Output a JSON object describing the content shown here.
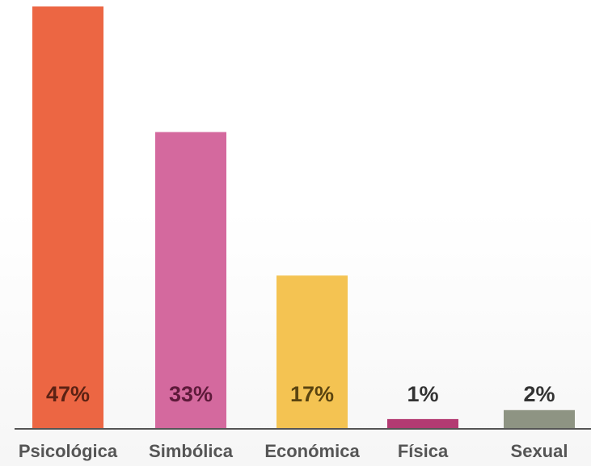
{
  "chart_data": {
    "type": "bar",
    "categories": [
      "Psicológica",
      "Simbólica",
      "Económica",
      "Física",
      "Sexual"
    ],
    "values": [
      47,
      33,
      17,
      1,
      2
    ],
    "value_labels": [
      "47%",
      "33%",
      "17%",
      "1%",
      "2%"
    ],
    "colors": [
      "#ec6643",
      "#d4699e",
      "#f4c352",
      "#b33a72",
      "#8e9483"
    ],
    "label_colors": [
      "#5c2214",
      "#5e1a3a",
      "#5a4410",
      "#333333",
      "#333333"
    ]
  }
}
